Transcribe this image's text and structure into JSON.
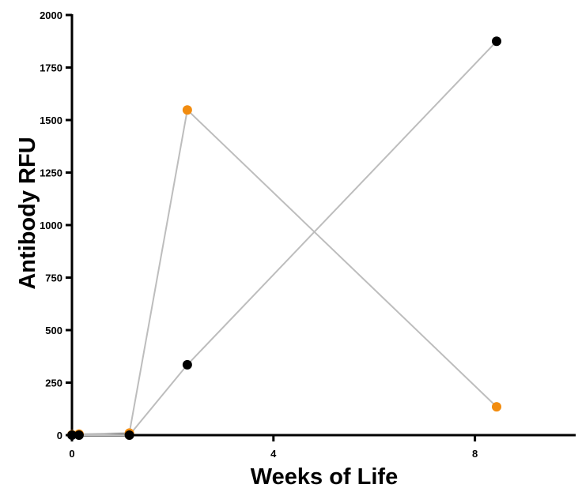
{
  "chart_data": {
    "type": "line",
    "title": "",
    "xlabel": "Weeks of Life",
    "ylabel": "Antibody RFU",
    "xlim": [
      0,
      10
    ],
    "ylim": [
      0,
      2000
    ],
    "x_ticks": [
      0,
      4,
      8
    ],
    "y_ticks": [
      0,
      250,
      500,
      750,
      1000,
      1250,
      1500,
      1750,
      2000
    ],
    "grid": false,
    "legend": "none",
    "line_color": "#bdbdbd",
    "series": [
      {
        "color": "#f28c0f",
        "x": [
          0,
          0.14,
          1.14,
          2.29,
          8.43
        ],
        "y": [
          2,
          5,
          10,
          1548,
          135
        ]
      },
      {
        "color": "#000000",
        "x": [
          0,
          0.14,
          1.14,
          2.29,
          8.43
        ],
        "y": [
          0,
          0,
          0,
          335,
          1875
        ]
      }
    ]
  }
}
